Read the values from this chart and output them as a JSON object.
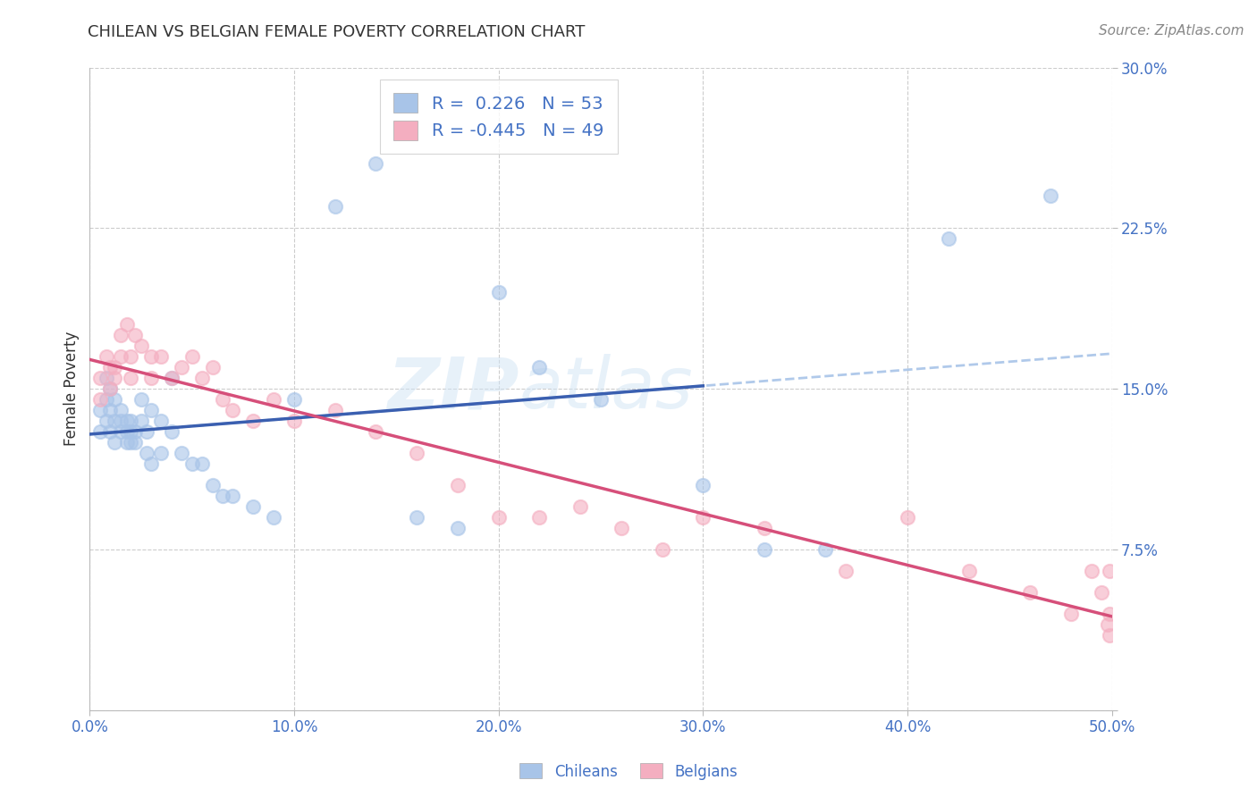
{
  "title": "CHILEAN VS BELGIAN FEMALE POVERTY CORRELATION CHART",
  "source": "Source: ZipAtlas.com",
  "ylabel": "Female Poverty",
  "xlim": [
    0.0,
    0.5
  ],
  "ylim": [
    0.0,
    0.3
  ],
  "xticks": [
    0.0,
    0.1,
    0.2,
    0.3,
    0.4,
    0.5
  ],
  "yticks": [
    0.0,
    0.075,
    0.15,
    0.225,
    0.3
  ],
  "ytick_labels": [
    "",
    "7.5%",
    "15.0%",
    "22.5%",
    "30.0%"
  ],
  "xtick_labels": [
    "0.0%",
    "10.0%",
    "20.0%",
    "30.0%",
    "40.0%",
    "50.0%"
  ],
  "chilean_color": "#a8c4e8",
  "belgian_color": "#f4aec0",
  "chilean_line_color": "#3a5fb0",
  "belgian_line_color": "#d64f7a",
  "chilean_dash_color": "#a8c4e8",
  "legend_R_chilean": " 0.226",
  "legend_N_chilean": "53",
  "legend_R_belgian": "-0.445",
  "legend_N_belgian": "49",
  "legend_label_chilean": "Chileans",
  "legend_label_belgian": "Belgians",
  "watermark_zip": "ZIP",
  "watermark_atlas": "atlas",
  "background_color": "#ffffff",
  "grid_color": "#cccccc",
  "title_color": "#333333",
  "axis_label_color": "#4472c4",
  "tick_color": "#4472c4",
  "chilean_x": [
    0.005,
    0.005,
    0.008,
    0.008,
    0.008,
    0.01,
    0.01,
    0.01,
    0.012,
    0.012,
    0.012,
    0.015,
    0.015,
    0.015,
    0.018,
    0.018,
    0.018,
    0.02,
    0.02,
    0.02,
    0.022,
    0.022,
    0.025,
    0.025,
    0.028,
    0.028,
    0.03,
    0.03,
    0.035,
    0.035,
    0.04,
    0.04,
    0.045,
    0.05,
    0.055,
    0.06,
    0.065,
    0.07,
    0.08,
    0.09,
    0.1,
    0.12,
    0.14,
    0.16,
    0.18,
    0.2,
    0.22,
    0.25,
    0.3,
    0.33,
    0.36,
    0.42,
    0.47
  ],
  "chilean_y": [
    0.14,
    0.13,
    0.155,
    0.145,
    0.135,
    0.15,
    0.14,
    0.13,
    0.145,
    0.135,
    0.125,
    0.14,
    0.135,
    0.13,
    0.135,
    0.13,
    0.125,
    0.135,
    0.13,
    0.125,
    0.13,
    0.125,
    0.145,
    0.135,
    0.13,
    0.12,
    0.14,
    0.115,
    0.135,
    0.12,
    0.155,
    0.13,
    0.12,
    0.115,
    0.115,
    0.105,
    0.1,
    0.1,
    0.095,
    0.09,
    0.145,
    0.235,
    0.255,
    0.09,
    0.085,
    0.195,
    0.16,
    0.145,
    0.105,
    0.075,
    0.075,
    0.22,
    0.24
  ],
  "belgian_x": [
    0.005,
    0.005,
    0.008,
    0.01,
    0.01,
    0.012,
    0.012,
    0.015,
    0.015,
    0.018,
    0.02,
    0.02,
    0.022,
    0.025,
    0.03,
    0.03,
    0.035,
    0.04,
    0.045,
    0.05,
    0.055,
    0.06,
    0.065,
    0.07,
    0.08,
    0.09,
    0.1,
    0.12,
    0.14,
    0.16,
    0.18,
    0.2,
    0.22,
    0.24,
    0.26,
    0.28,
    0.3,
    0.33,
    0.37,
    0.4,
    0.43,
    0.46,
    0.48,
    0.49,
    0.495,
    0.498,
    0.499,
    0.499,
    0.499
  ],
  "belgian_y": [
    0.155,
    0.145,
    0.165,
    0.16,
    0.15,
    0.16,
    0.155,
    0.175,
    0.165,
    0.18,
    0.165,
    0.155,
    0.175,
    0.17,
    0.165,
    0.155,
    0.165,
    0.155,
    0.16,
    0.165,
    0.155,
    0.16,
    0.145,
    0.14,
    0.135,
    0.145,
    0.135,
    0.14,
    0.13,
    0.12,
    0.105,
    0.09,
    0.09,
    0.095,
    0.085,
    0.075,
    0.09,
    0.085,
    0.065,
    0.09,
    0.065,
    0.055,
    0.045,
    0.065,
    0.055,
    0.04,
    0.035,
    0.065,
    0.045
  ]
}
